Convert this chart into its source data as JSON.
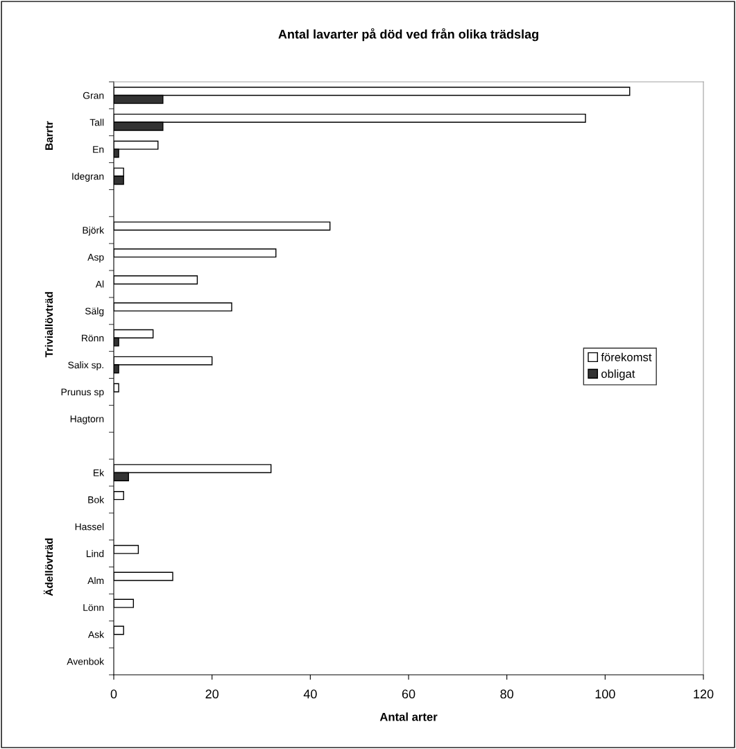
{
  "chart_data": {
    "type": "bar",
    "orientation": "horizontal",
    "title": "Antal lavarter på död ved från olika trädslag",
    "xlabel": "Antal arter",
    "categories": [
      "Gran",
      "Tall",
      "En",
      "Idegran",
      null,
      "Björk",
      "Asp",
      "Al",
      "Sälg",
      "Rönn",
      "Salix sp.",
      "Prunus sp",
      "Hagtorn",
      null,
      "Ek",
      "Bok",
      "Hassel",
      "Lind",
      "Alm",
      "Lönn",
      "Ask",
      "Avenbok"
    ],
    "series": [
      {
        "name": "förekomst",
        "color": "#ffffff",
        "values": [
          105,
          96,
          9,
          2,
          null,
          44,
          33,
          17,
          24,
          8,
          20,
          1,
          null,
          null,
          32,
          2,
          null,
          5,
          12,
          4,
          2,
          null
        ]
      },
      {
        "name": "obligat",
        "color": "#333333",
        "values": [
          10,
          10,
          1,
          2,
          null,
          null,
          null,
          null,
          null,
          1,
          1,
          null,
          null,
          null,
          3,
          null,
          null,
          null,
          null,
          null,
          null,
          null
        ]
      }
    ],
    "annotations": [
      "Barrtr",
      "Triviallövträd",
      "Ädellövträd"
    ],
    "xlim": [
      0,
      120
    ],
    "xticks": [
      0,
      20,
      40,
      60,
      80,
      100,
      120
    ],
    "grid": false,
    "legend": "right"
  }
}
